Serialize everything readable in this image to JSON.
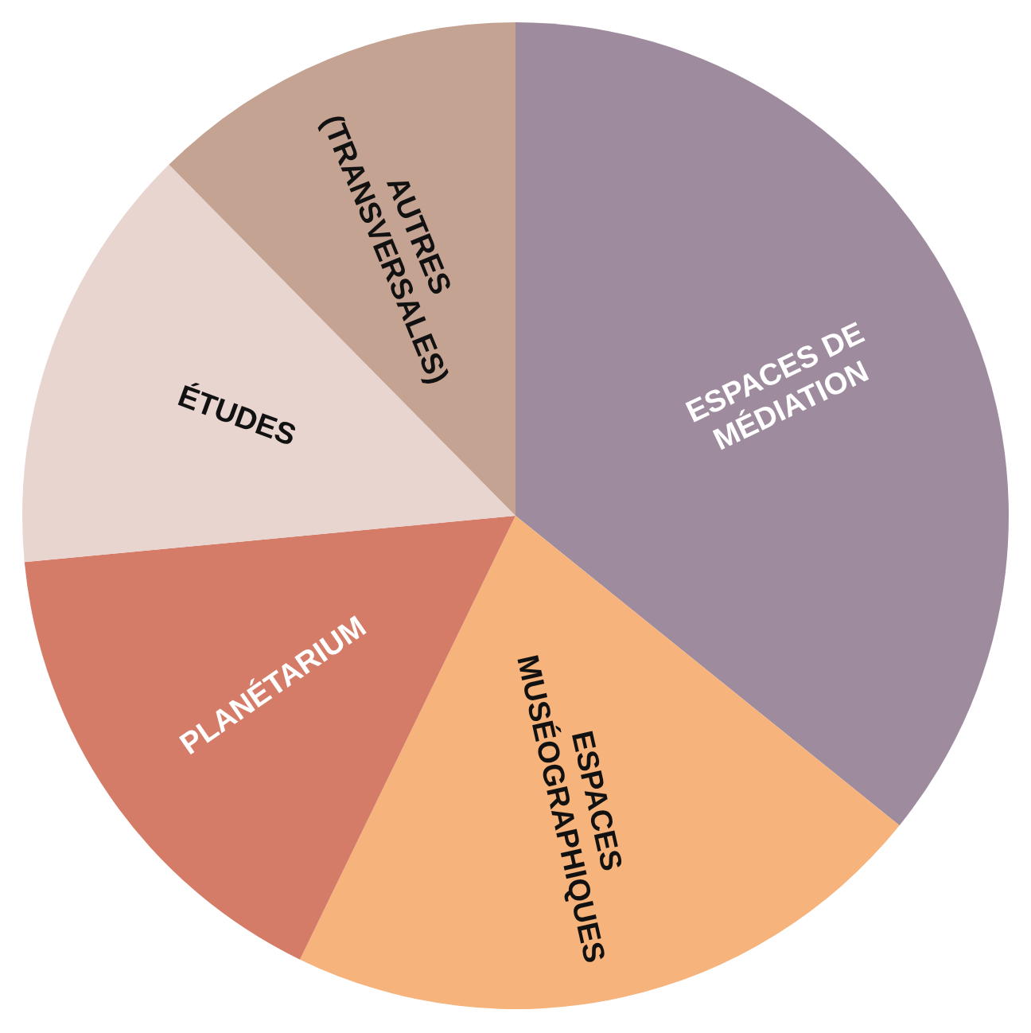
{
  "chart_data": {
    "type": "pie",
    "categories": [
      "ESPACES DE MÉDIATION",
      "ESPACES MUSÉOGRAPHIQUES",
      "PLANÉTARIUM",
      "ÉTUDES",
      "AUTRES (TRANSVERSALES)"
    ],
    "values": [
      35.8,
      21.4,
      16.3,
      14.1,
      12.4
    ],
    "colors": [
      "#9e8c9e",
      "#f6b37b",
      "#d47c67",
      "#e8d5d0",
      "#c5a392"
    ]
  }
}
